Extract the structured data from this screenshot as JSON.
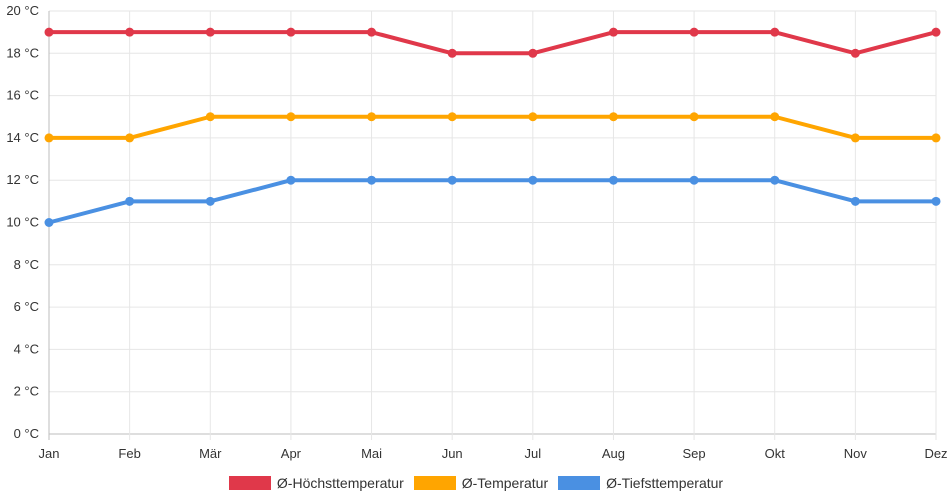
{
  "chart_data": {
    "type": "line",
    "title": "",
    "xlabel": "",
    "ylabel": "",
    "categories": [
      "Jan",
      "Feb",
      "Mär",
      "Apr",
      "Mai",
      "Jun",
      "Jul",
      "Aug",
      "Sep",
      "Okt",
      "Nov",
      "Dez"
    ],
    "ylim": [
      0,
      20
    ],
    "y_ticks": [
      "0 °C",
      "2 °C",
      "4 °C",
      "6 °C",
      "8 °C",
      "10 °C",
      "12 °C",
      "14 °C",
      "16 °C",
      "18 °C",
      "20 °C"
    ],
    "grid": true,
    "legend_position": "bottom",
    "series": [
      {
        "name": "Ø-Höchsttemperatur",
        "color": "#e0384a",
        "values": [
          19,
          19,
          19,
          19,
          19,
          18,
          18,
          19,
          19,
          19,
          18,
          19
        ]
      },
      {
        "name": "Ø-Temperatur",
        "color": "#ffa500",
        "values": [
          14,
          14,
          15,
          15,
          15,
          15,
          15,
          15,
          15,
          15,
          14,
          14
        ]
      },
      {
        "name": "Ø-Tiefsttemperatur",
        "color": "#4a90e2",
        "values": [
          10,
          11,
          11,
          12,
          12,
          12,
          12,
          12,
          12,
          12,
          11,
          11
        ]
      }
    ]
  }
}
